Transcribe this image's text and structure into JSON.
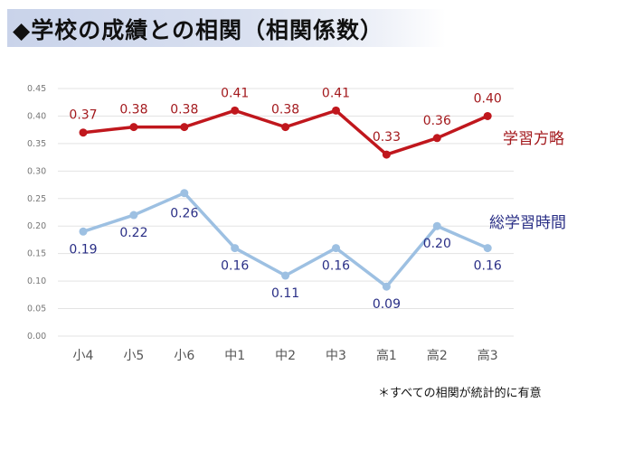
{
  "title": "◆学校の成績との相関（相関係数）",
  "footnote": "＊すべての相関が統計的に有意",
  "chart_data": {
    "type": "line",
    "title": "学校の成績との相関（相関係数）",
    "xlabel": "",
    "ylabel": "",
    "categories": [
      "小4",
      "小5",
      "小6",
      "中1",
      "中2",
      "中3",
      "高1",
      "高2",
      "高3"
    ],
    "y_ticks": [
      "0.00",
      "0.05",
      "0.10",
      "0.15",
      "0.20",
      "0.25",
      "0.30",
      "0.35",
      "0.40",
      "0.45"
    ],
    "ylim": [
      0,
      0.45
    ],
    "grid": true,
    "series": [
      {
        "name": "学習方略",
        "color": "#c0171d",
        "values": [
          0.37,
          0.38,
          0.38,
          0.41,
          0.38,
          0.41,
          0.33,
          0.36,
          0.4
        ],
        "data_labels": [
          "0.37",
          "0.38",
          "0.38",
          "0.41",
          "0.38",
          "0.41",
          "0.33",
          "0.36",
          "0.40"
        ],
        "label_color": "#a3191d"
      },
      {
        "name": "総学習時間",
        "color": "#9dc0e2",
        "values": [
          0.19,
          0.22,
          0.26,
          0.16,
          0.11,
          0.16,
          0.09,
          0.2,
          0.16
        ],
        "data_labels": [
          "0.19",
          "0.22",
          "0.26",
          "0.16",
          "0.11",
          "0.16",
          "0.09",
          "0.20",
          "0.16"
        ],
        "label_color": "#2a2f86"
      }
    ]
  }
}
